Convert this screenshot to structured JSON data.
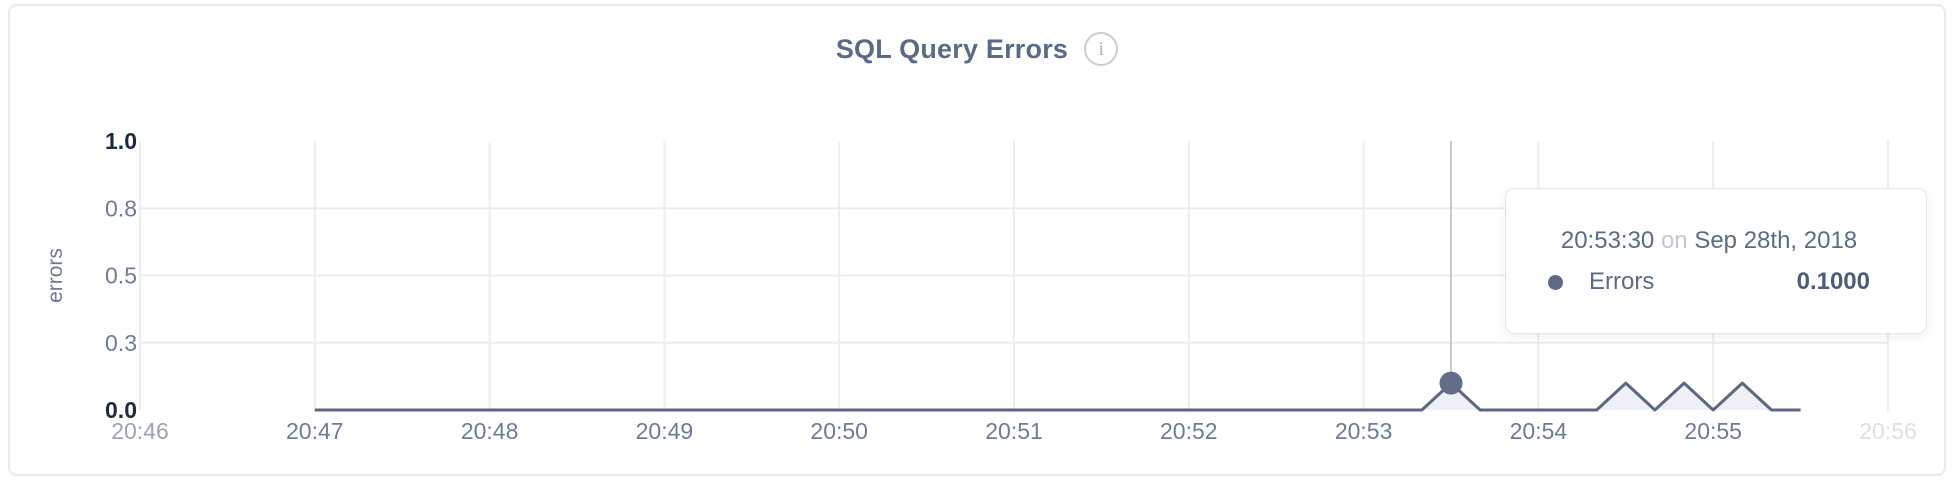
{
  "header": {
    "title": "SQL Query Errors",
    "info_icon": "i"
  },
  "colors": {
    "line": "#5c6880",
    "area_fill": "#eef0f6",
    "hover_dot": "#626e89",
    "crosshair": "#c7cad2",
    "gridline": "#ededef",
    "title_text": "#5b6b87",
    "tick_normal": "#6f7b94",
    "tick_muted": "#9ba3b0",
    "tick_faint": "#dcdfe5",
    "tick_strong": "#1e2a3e",
    "axis_label": "#6e7a93"
  },
  "tooltip": {
    "time": "20:53:30",
    "connector": "on",
    "date": "Sep 28th, 2018",
    "series_label": "Errors",
    "value": "0.1000"
  },
  "chart_data": {
    "type": "area",
    "title": "SQL Query Errors",
    "xlabel": "",
    "ylabel": "errors",
    "ylim": [
      0,
      1
    ],
    "grid": true,
    "x_range": [
      "20:46",
      "20:56"
    ],
    "x_ticks": [
      {
        "label": "20:46",
        "tone": "muted"
      },
      {
        "label": "20:47",
        "tone": "normal"
      },
      {
        "label": "20:48",
        "tone": "normal"
      },
      {
        "label": "20:49",
        "tone": "normal"
      },
      {
        "label": "20:50",
        "tone": "normal"
      },
      {
        "label": "20:51",
        "tone": "normal"
      },
      {
        "label": "20:52",
        "tone": "normal"
      },
      {
        "label": "20:53",
        "tone": "normal"
      },
      {
        "label": "20:54",
        "tone": "normal"
      },
      {
        "label": "20:55",
        "tone": "normal"
      },
      {
        "label": "20:56",
        "tone": "faint"
      }
    ],
    "y_ticks": [
      {
        "label": "0.0",
        "value": 0,
        "tone": "strong"
      },
      {
        "label": "0.3",
        "value": 0.25,
        "tone": "normal"
      },
      {
        "label": "0.5",
        "value": 0.5,
        "tone": "normal"
      },
      {
        "label": "0.8",
        "value": 0.75,
        "tone": "normal"
      },
      {
        "label": "1.0",
        "value": 1,
        "tone": "strong"
      }
    ],
    "series": [
      {
        "name": "Errors",
        "start": "20:47:00",
        "end": "20:55:30",
        "interval_seconds": 10,
        "baseline_value": 0,
        "nonzero_points": [
          [
            "20:53:30",
            0.1
          ],
          [
            "20:54:30",
            0.1
          ],
          [
            "20:54:50",
            0.1
          ],
          [
            "20:55:10",
            0.1
          ]
        ]
      }
    ],
    "hover": {
      "time": "20:53:30",
      "value": 0.1,
      "series": "Errors"
    }
  }
}
